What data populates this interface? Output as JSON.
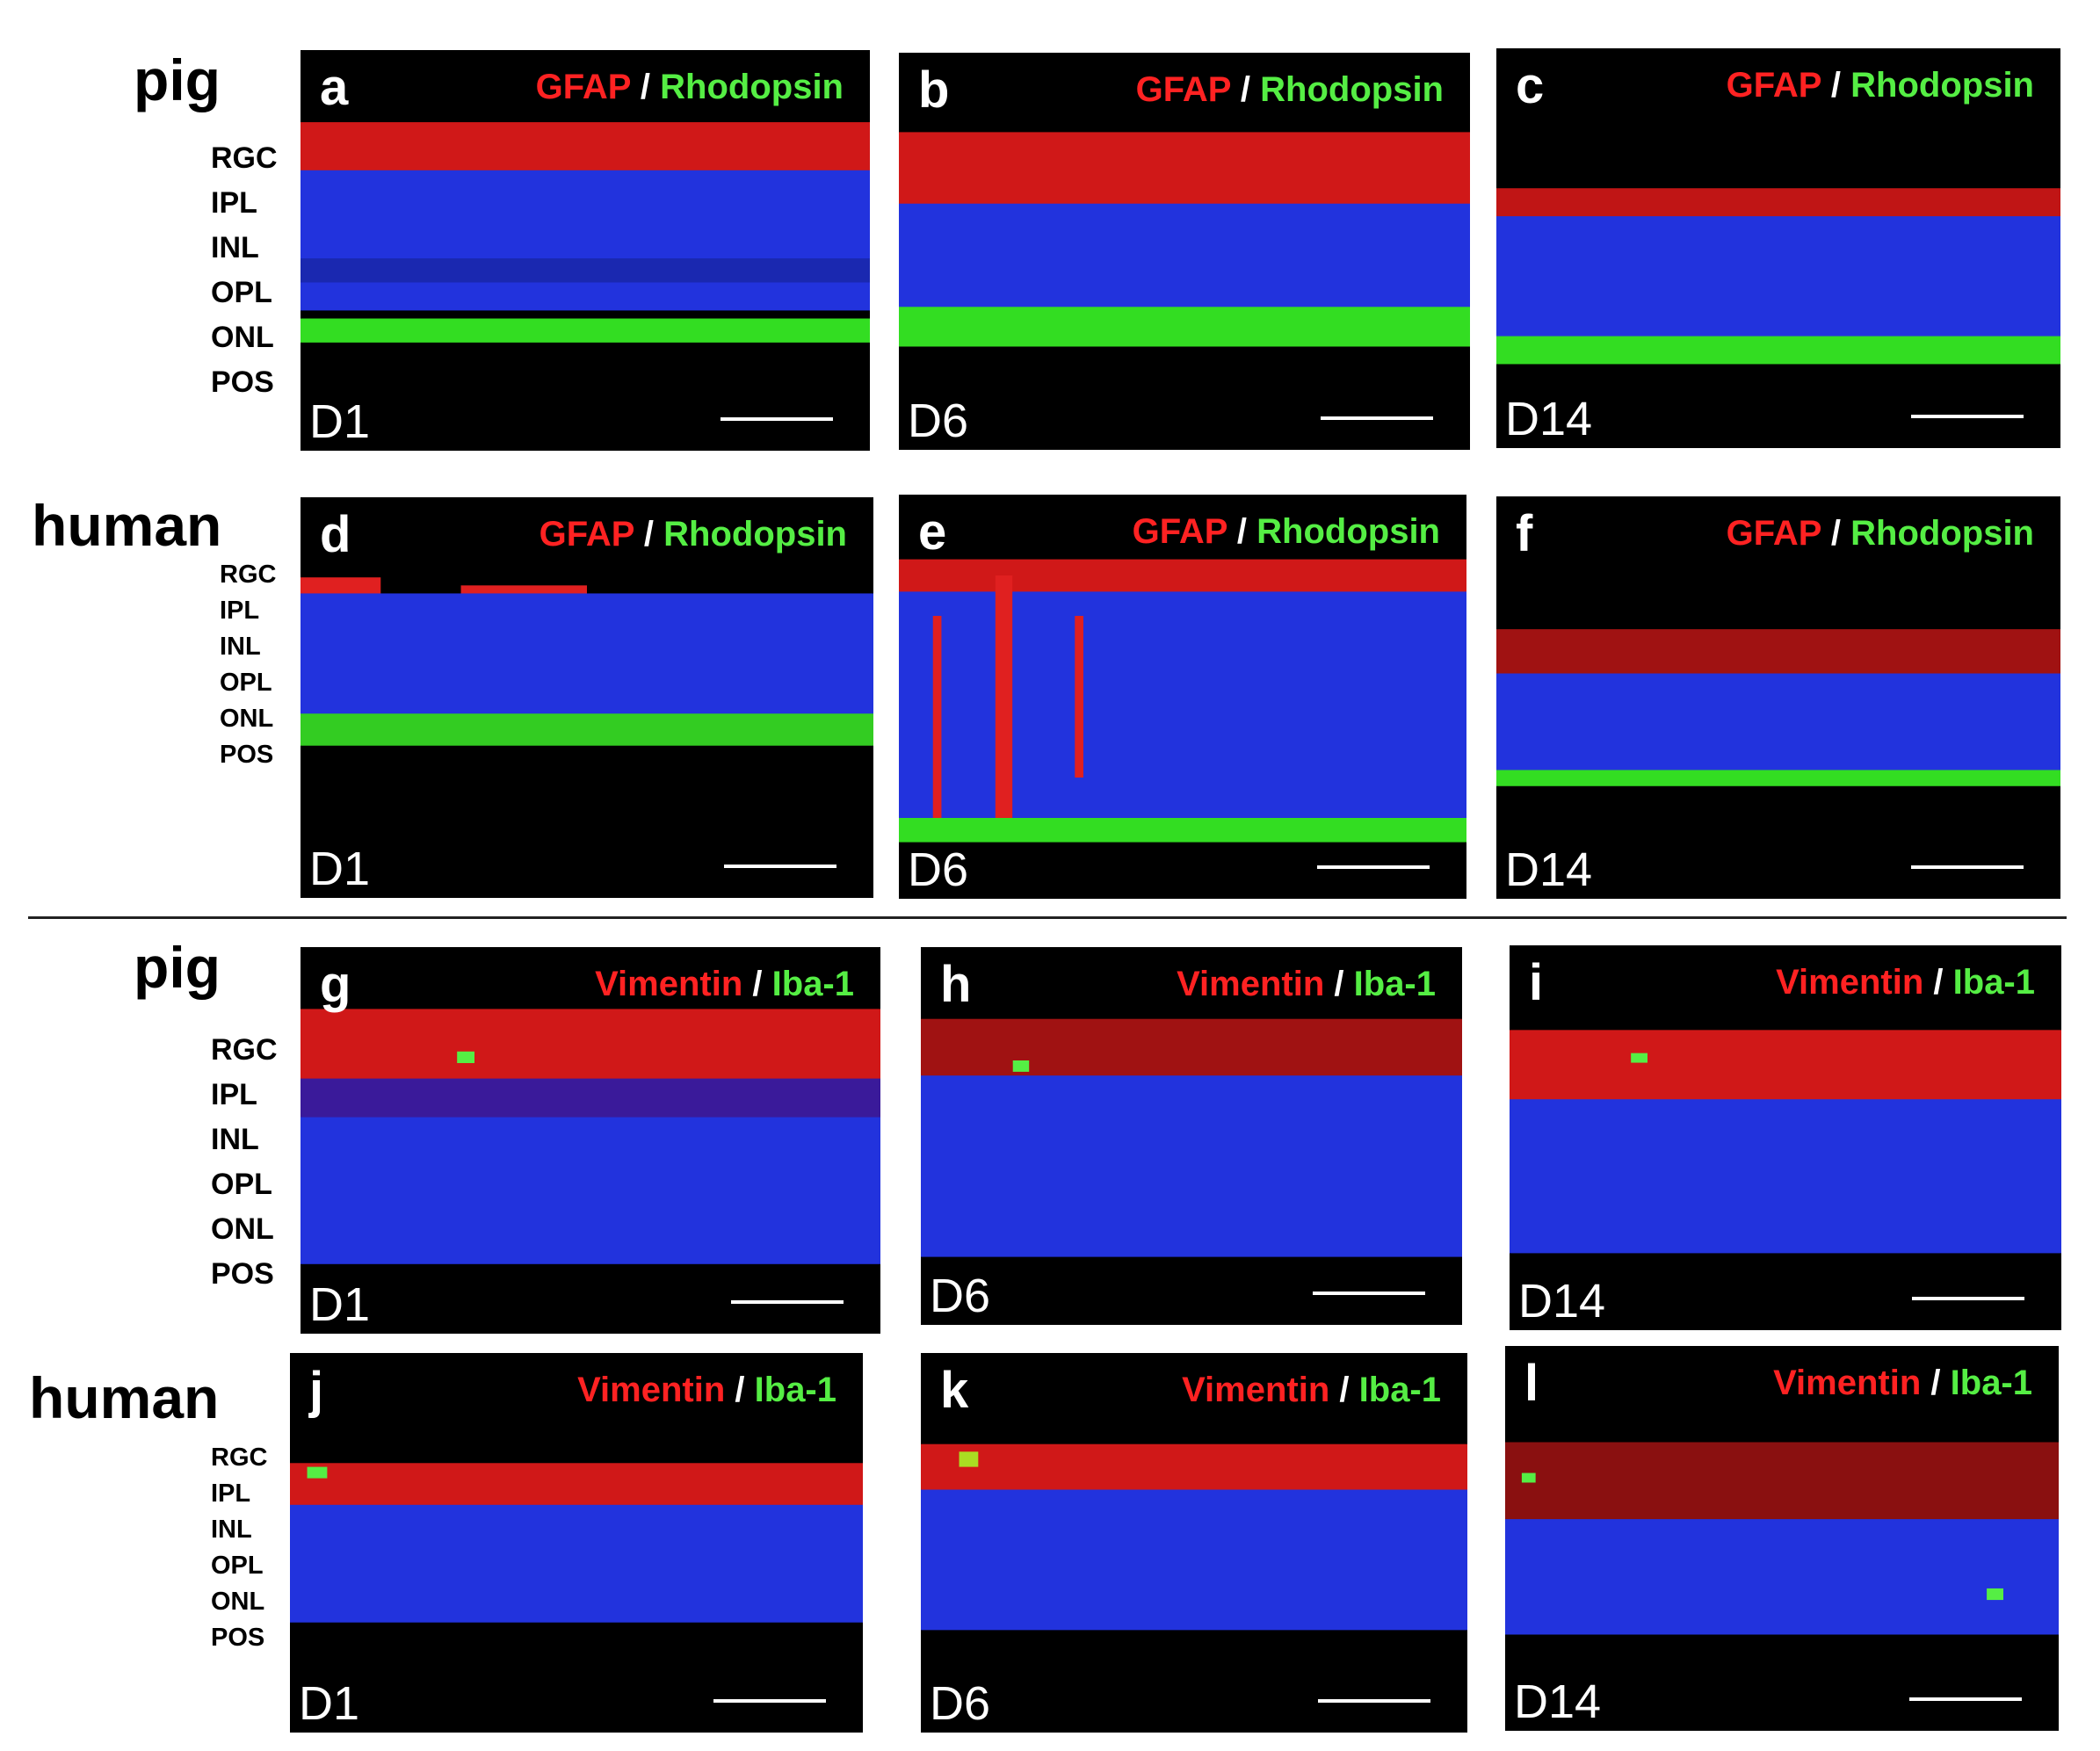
{
  "rows": {
    "gfap_pig": {
      "species": "pig",
      "layers": [
        "RGC",
        "IPL",
        "INL",
        "OPL",
        "ONL",
        "POS"
      ],
      "panels": [
        {
          "letter": "a",
          "stain1": "GFAP",
          "sep": "/",
          "stain2": "Rhodopsin",
          "day": "D1"
        },
        {
          "letter": "b",
          "stain1": "GFAP",
          "sep": "/",
          "stain2": "Rhodopsin",
          "day": "D6"
        },
        {
          "letter": "c",
          "stain1": "GFAP",
          "sep": "/",
          "stain2": "Rhodopsin",
          "day": "D14"
        }
      ]
    },
    "gfap_human": {
      "species": "human",
      "layers": [
        "RGC",
        "IPL",
        "INL",
        "OPL",
        "ONL",
        "POS"
      ],
      "panels": [
        {
          "letter": "d",
          "stain1": "GFAP",
          "sep": "/",
          "stain2": "Rhodopsin",
          "day": "D1"
        },
        {
          "letter": "e",
          "stain1": "GFAP",
          "sep": "/",
          "stain2": "Rhodopsin",
          "day": "D6"
        },
        {
          "letter": "f",
          "stain1": "GFAP",
          "sep": "/",
          "stain2": "Rhodopsin",
          "day": "D14"
        }
      ]
    },
    "vim_pig": {
      "species": "pig",
      "layers": [
        "RGC",
        "IPL",
        "INL",
        "OPL",
        "ONL",
        "POS"
      ],
      "panels": [
        {
          "letter": "g",
          "stain1": "Vimentin",
          "sep": "/",
          "stain2": "Iba-1",
          "day": "D1"
        },
        {
          "letter": "h",
          "stain1": "Vimentin",
          "sep": "/",
          "stain2": "Iba-1",
          "day": "D6"
        },
        {
          "letter": "i",
          "stain1": "Vimentin",
          "sep": "/",
          "stain2": "Iba-1",
          "day": "D14"
        }
      ]
    },
    "vim_human": {
      "species": "human",
      "layers": [
        "RGC",
        "IPL",
        "INL",
        "OPL",
        "ONL",
        "POS"
      ],
      "panels": [
        {
          "letter": "j",
          "stain1": "Vimentin",
          "sep": "/",
          "stain2": "Iba-1",
          "day": "D1"
        },
        {
          "letter": "k",
          "stain1": "Vimentin",
          "sep": "/",
          "stain2": "Iba-1",
          "day": "D6"
        },
        {
          "letter": "l",
          "stain1": "Vimentin",
          "sep": "/",
          "stain2": "Iba-1",
          "day": "D14"
        }
      ]
    }
  },
  "colors": {
    "gfap_vimentin": "#ff2222",
    "rhodopsin_iba1": "#55ee44",
    "nuclei": "#2233ee"
  }
}
